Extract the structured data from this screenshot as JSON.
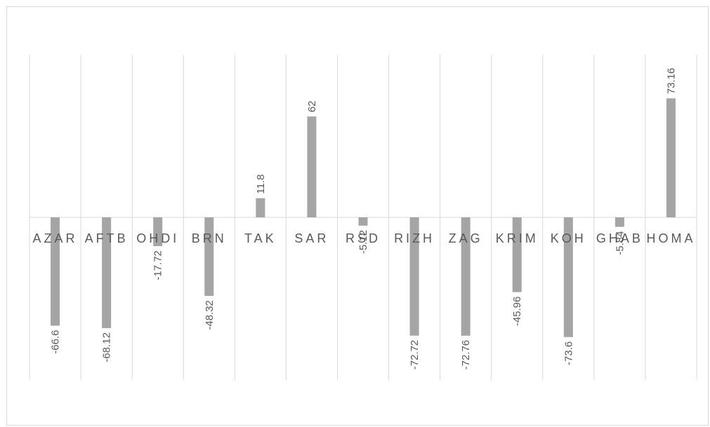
{
  "chart_data": {
    "type": "bar",
    "categories": [
      "AZAR",
      "AFTB",
      "OHDI",
      "BRN",
      "TAK",
      "SAR",
      "RSD",
      "RIZH",
      "ZAG",
      "KRIM",
      "KOH",
      "GHAB",
      "HOMA"
    ],
    "values": [
      -66.6,
      -68.12,
      -17.72,
      -48.32,
      11.8,
      62,
      -5.12,
      -72.72,
      -72.76,
      -45.96,
      -73.6,
      -5.84,
      73.16
    ],
    "data_labels": [
      "-66.6",
      "-68.12",
      "-17.72",
      "-48.32",
      "11.8",
      "62",
      "-5.12",
      "-72.72",
      "-72.76",
      "-45.96",
      "-73.6",
      "-5.84",
      "73.16"
    ],
    "title": "",
    "xlabel": "",
    "ylabel": "",
    "ylim": [
      -100,
      100
    ],
    "grid": "vertical",
    "legend": "none",
    "colors": {
      "bar": "#a5a5a5",
      "grid": "#d9d9d9",
      "text": "#595959",
      "axis": "#d9d9d9"
    }
  }
}
